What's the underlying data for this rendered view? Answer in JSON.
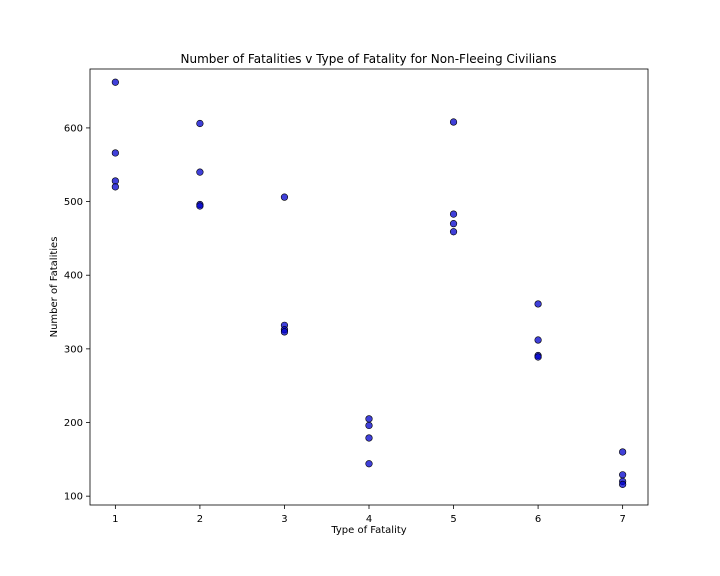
{
  "chart_data": {
    "type": "scatter",
    "title": "Number of Fatalities v Type of Fatality for Non-Fleeing Civilians",
    "xlabel": "Type of Fatality",
    "ylabel": "Number of Fatalities",
    "xlim": [
      0.7,
      7.3
    ],
    "ylim": [
      88,
      680
    ],
    "xticks": [
      1,
      2,
      3,
      4,
      5,
      6,
      7
    ],
    "yticks": [
      100,
      200,
      300,
      400,
      500,
      600
    ],
    "grid": false,
    "marker_color": "#0000cc",
    "points": [
      {
        "x": 1,
        "y": 662
      },
      {
        "x": 1,
        "y": 566
      },
      {
        "x": 1,
        "y": 528
      },
      {
        "x": 1,
        "y": 520
      },
      {
        "x": 2,
        "y": 606
      },
      {
        "x": 2,
        "y": 540
      },
      {
        "x": 2,
        "y": 496
      },
      {
        "x": 2,
        "y": 494
      },
      {
        "x": 3,
        "y": 506
      },
      {
        "x": 3,
        "y": 332
      },
      {
        "x": 3,
        "y": 326
      },
      {
        "x": 3,
        "y": 323
      },
      {
        "x": 4,
        "y": 205
      },
      {
        "x": 4,
        "y": 196
      },
      {
        "x": 4,
        "y": 179
      },
      {
        "x": 4,
        "y": 144
      },
      {
        "x": 5,
        "y": 608
      },
      {
        "x": 5,
        "y": 483
      },
      {
        "x": 5,
        "y": 470
      },
      {
        "x": 5,
        "y": 459
      },
      {
        "x": 6,
        "y": 361
      },
      {
        "x": 6,
        "y": 312
      },
      {
        "x": 6,
        "y": 291
      },
      {
        "x": 6,
        "y": 289
      },
      {
        "x": 7,
        "y": 160
      },
      {
        "x": 7,
        "y": 129
      },
      {
        "x": 7,
        "y": 120
      },
      {
        "x": 7,
        "y": 116
      }
    ]
  }
}
